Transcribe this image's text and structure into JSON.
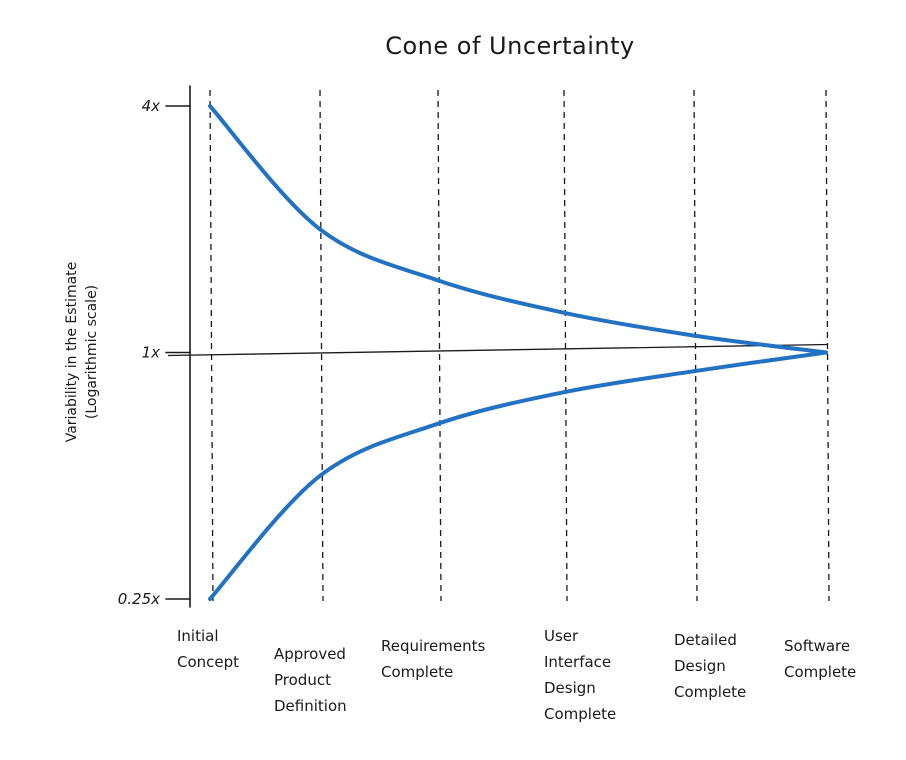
{
  "chart_data": {
    "type": "line",
    "title": "Cone of Uncertainty",
    "ylabel_lines": [
      "Variability in the Estimate",
      "(Logarithmic scale)"
    ],
    "xlabel": "",
    "yscale": "log",
    "ylim": [
      0.25,
      4
    ],
    "yticks": [
      {
        "value": 4,
        "label": "4x"
      },
      {
        "value": 1,
        "label": "1x"
      },
      {
        "value": 0.25,
        "label": "0.25x"
      }
    ],
    "categories": [
      [
        "Initial",
        "Concept"
      ],
      [
        "Approved",
        "Product",
        "Definition"
      ],
      [
        "Requirements",
        "Complete"
      ],
      [
        "User",
        "Interface",
        "Design",
        "Complete"
      ],
      [
        "Detailed",
        "Design",
        "Complete"
      ],
      [
        "Software",
        "Complete"
      ]
    ],
    "grid": "dashed vertical lines at each phase",
    "legend": "none",
    "series": [
      {
        "values": [
          4,
          2.0,
          1.5,
          1.25,
          1.1,
          1.0
        ],
        "color": "#2272c3"
      },
      {
        "values": [
          0.25,
          0.5,
          0.67,
          0.8,
          0.9,
          1.0
        ],
        "color": "#2272c3"
      }
    ]
  }
}
